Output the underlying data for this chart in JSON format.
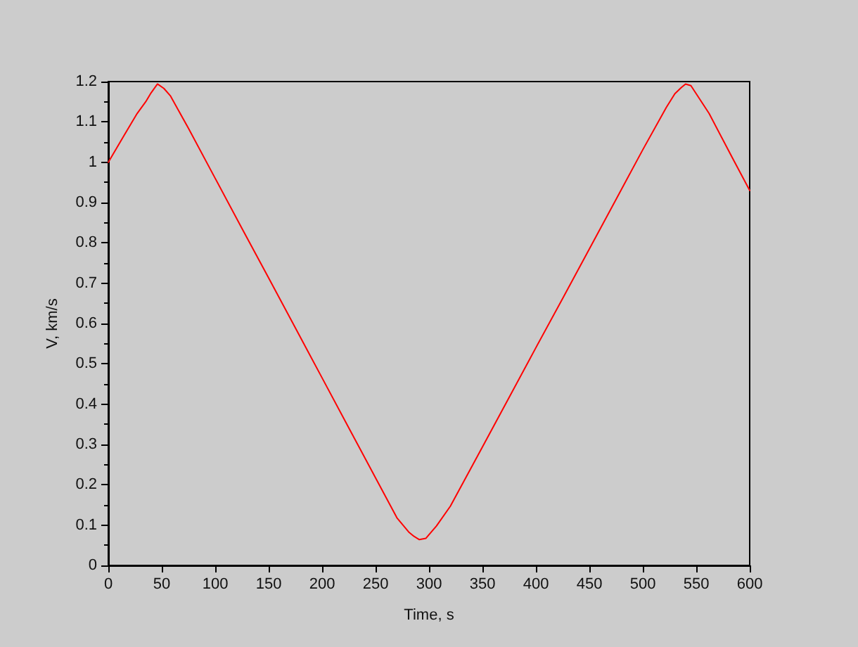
{
  "chart_data": {
    "type": "line",
    "xlabel": "Time, s",
    "ylabel": "V, km/s",
    "x": [
      0,
      14,
      27,
      35,
      40,
      46,
      52,
      58,
      75,
      100,
      125,
      150,
      175,
      200,
      225,
      250,
      270,
      281,
      286,
      291,
      297,
      307,
      320,
      350,
      375,
      400,
      425,
      450,
      475,
      500,
      522,
      530,
      536,
      540,
      545,
      562,
      584,
      600
    ],
    "values": [
      1.0,
      1.063,
      1.121,
      1.15,
      1.172,
      1.194,
      1.183,
      1.165,
      1.084,
      0.96,
      0.836,
      0.713,
      0.589,
      0.465,
      0.341,
      0.217,
      0.118,
      0.083,
      0.072,
      0.064,
      0.067,
      0.098,
      0.147,
      0.294,
      0.417,
      0.54,
      0.662,
      0.785,
      0.908,
      1.031,
      1.136,
      1.17,
      1.185,
      1.194,
      1.19,
      1.121,
      1.01,
      0.93
    ],
    "color": "#ff0000",
    "xlim": [
      0,
      600
    ],
    "xticks": [
      0,
      50,
      100,
      150,
      200,
      250,
      300,
      350,
      400,
      450,
      500,
      550,
      600
    ],
    "ylim": [
      0,
      1.2
    ],
    "yticks": [
      0,
      {
        "value": 0.05,
        "label": null
      },
      0.1,
      {
        "value": 0.15,
        "label": null
      },
      0.2,
      {
        "value": 0.25,
        "label": null
      },
      0.3,
      {
        "value": 0.35,
        "label": null
      },
      0.4,
      {
        "value": 0.45,
        "label": null
      },
      0.5,
      {
        "value": 0.55,
        "label": null
      },
      0.6,
      {
        "value": 0.65,
        "label": null
      },
      0.7,
      {
        "value": 0.75,
        "label": null
      },
      0.8,
      {
        "value": 0.85,
        "label": null
      },
      0.9,
      {
        "value": 0.95,
        "label": null
      },
      1,
      {
        "value": 1.05,
        "label": null
      },
      1.1,
      {
        "value": 1.15,
        "label": null
      },
      1.2
    ],
    "grid": false,
    "marker": "none",
    "line_style": "solid"
  }
}
